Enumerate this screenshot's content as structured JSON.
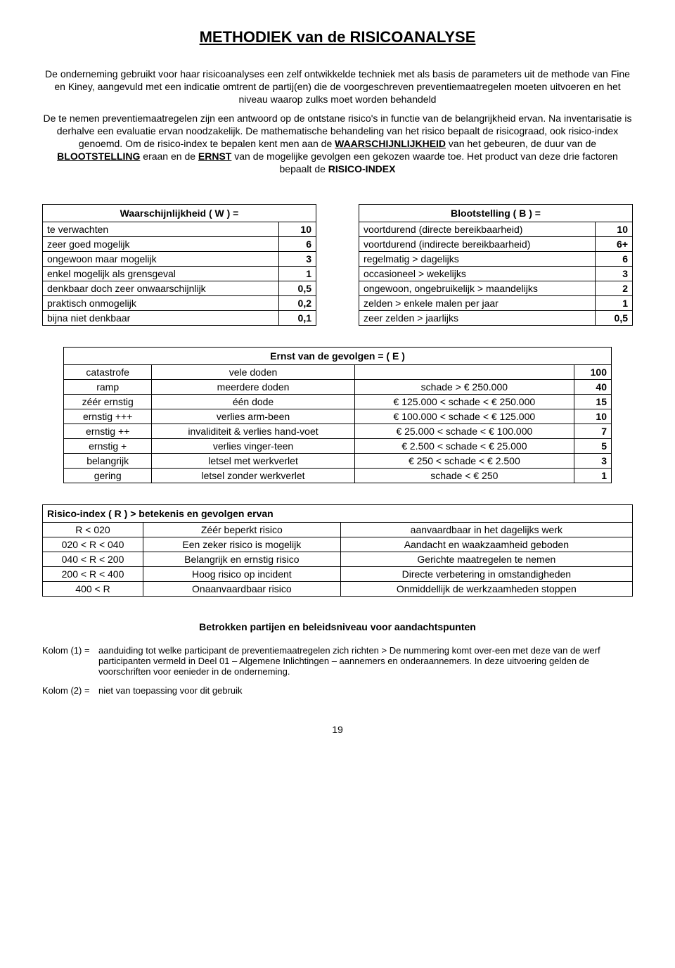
{
  "title": "METHODIEK van de RISICOANALYSE",
  "intro": {
    "p1": "De onderneming gebruikt voor haar risicoanalyses een zelf ontwikkelde techniek met als basis de parameters uit de methode van Fine en Kiney, aangevuld met een indicatie omtrent de partij(en) die de voorgeschreven preventiemaatregelen moeten uitvoeren en het niveau waarop zulks moet worden behandeld",
    "p2a": "De te nemen preventiemaatregelen zijn een antwoord op de ontstane risico's in functie van de belangrijkheid ervan. Na inventarisatie is derhalve een evaluatie ervan noodzakelijk. De mathematische behandeling van het risico bepaalt de risicograad, ook risico-index genoemd. Om de  risico-index te bepalen kent men aan de ",
    "p2_waarschijnlijkheid": "WAARSCHIJNLIJKHEID",
    "p2b": " van  het gebeuren, de duur van de ",
    "p2_blootstelling": "BLOOTSTELLING",
    "p2c": " eraan en de ",
    "p2_ernst": "ERNST",
    "p2d": " van de mogelijke gevolgen een gekozen waarde toe. Het product van deze drie factoren bepaalt de ",
    "p2_risico": "RISICO-INDEX"
  },
  "tableW": {
    "header": "Waarschijnlijkheid ( W ) =",
    "rows": [
      {
        "label": "te verwachten",
        "value": "10"
      },
      {
        "label": "zeer goed mogelijk",
        "value": "6"
      },
      {
        "label": "ongewoon maar mogelijk",
        "value": "3"
      },
      {
        "label": "enkel mogelijk als grensgeval",
        "value": "1"
      },
      {
        "label": "denkbaar doch zeer onwaarschijnlijk",
        "value": "0,5"
      },
      {
        "label": "praktisch onmogelijk",
        "value": "0,2"
      },
      {
        "label": "bijna niet denkbaar",
        "value": "0,1"
      }
    ]
  },
  "tableB": {
    "header": "Blootstelling ( B ) =",
    "rows": [
      {
        "label": "voortdurend (directe bereikbaarheid)",
        "value": "10"
      },
      {
        "label": "voortdurend (indirecte bereikbaarheid)",
        "value": "6+"
      },
      {
        "label": "regelmatig > dagelijks",
        "value": "6"
      },
      {
        "label": "occasioneel > wekelijks",
        "value": "3"
      },
      {
        "label": "ongewoon, ongebruikelijk > maandelijks",
        "value": "2"
      },
      {
        "label": "zelden > enkele malen per jaar",
        "value": "1"
      },
      {
        "label": "zeer zelden > jaarlijks",
        "value": "0,5"
      }
    ]
  },
  "tableE": {
    "header": "Ernst van de gevolgen = ( E )",
    "rows": [
      {
        "c1": "catastrofe",
        "c2": "vele doden",
        "c3": "",
        "val": "100"
      },
      {
        "c1": "ramp",
        "c2": "meerdere doden",
        "c3": "schade > € 250.000",
        "val": "40"
      },
      {
        "c1": "zéér ernstig",
        "c2": "één dode",
        "c3": "€ 125.000 < schade < € 250.000",
        "val": "15"
      },
      {
        "c1": "ernstig +++",
        "c2": "verlies arm-been",
        "c3": "€ 100.000 < schade < € 125.000",
        "val": "10"
      },
      {
        "c1": "ernstig ++",
        "c2": "invaliditeit & verlies hand-voet",
        "c3": "€ 25.000 < schade < € 100.000",
        "val": "7"
      },
      {
        "c1": "ernstig +",
        "c2": "verlies vinger-teen",
        "c3": "€ 2.500 < schade < € 25.000",
        "val": "5"
      },
      {
        "c1": "belangrijk",
        "c2": "letsel met werkverlet",
        "c3": "€ 250 < schade < € 2.500",
        "val": "3"
      },
      {
        "c1": "gering",
        "c2": "letsel zonder werkverlet",
        "c3": "schade < € 250",
        "val": "1"
      }
    ]
  },
  "tableR": {
    "header": "Risico-index ( R )  >  betekenis en gevolgen ervan",
    "rows": [
      {
        "c1": "R < 020",
        "c2": "Zéér beperkt risico",
        "c3": "aanvaardbaar in het dagelijks werk"
      },
      {
        "c1": "020 < R < 040",
        "c2": "Een zeker risico is mogelijk",
        "c3": "Aandacht en waakzaamheid geboden"
      },
      {
        "c1": "040 < R < 200",
        "c2": "Belangrijk en ernstig risico",
        "c3": "Gerichte maatregelen te nemen"
      },
      {
        "c1": "200 < R < 400",
        "c2": "Hoog risico op incident",
        "c3": "Directe verbetering in omstandigheden"
      },
      {
        "c1": "400 < R",
        "c2": "Onaanvaardbaar risico",
        "c3": "Onmiddellijk de werkzaamheden stoppen"
      }
    ]
  },
  "footer": {
    "title": "Betrokken partijen en beleidsniveau voor aandachtspunten",
    "k1_label": "Kolom (1) =",
    "k1_text": "aanduiding tot welke participant de preventiemaatregelen zich richten  > De nummering komt over-een met deze van de werf participanten vermeld in Deel 01 – Algemene Inlichtingen – aannemers en onderaannemers. In deze uitvoering gelden de voorschriften voor eenieder in de onderneming.",
    "k2_label": "Kolom (2) =",
    "k2_text": "niet van toepassing voor dit gebruik"
  },
  "page_number": "19"
}
